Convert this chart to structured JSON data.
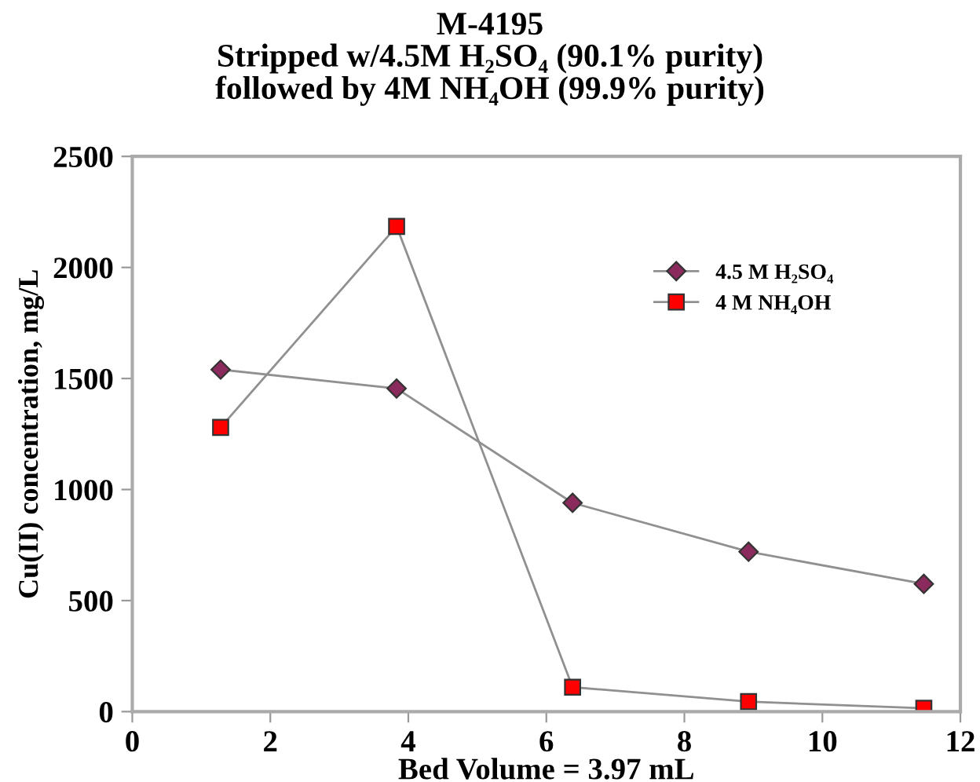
{
  "chart_data": {
    "type": "line",
    "title": "M-4195\nStripped w/4.5M H₂SO₄ (90.1% purity)\nfollowed by 4M NH₄OH (99.9% purity)",
    "xlabel": "Bed Volume = 3.97 mL",
    "ylabel": "Cu(II) concentration, mg/L",
    "x": [
      1.28,
      3.83,
      6.38,
      8.93,
      11.47
    ],
    "series": [
      {
        "name": "4.5 M H₂SO₄",
        "color": "#8b2a5c",
        "marker": "diamond",
        "values": [
          1540,
          1455,
          940,
          720,
          575
        ]
      },
      {
        "name": "4 M NH₄OH",
        "color": "#ff0000",
        "marker": "square",
        "values": [
          1280,
          2185,
          110,
          45,
          15
        ]
      }
    ],
    "xlim": [
      0,
      12
    ],
    "xticks": [
      0,
      2,
      4,
      6,
      8,
      10,
      12
    ],
    "ylim": [
      0,
      2500
    ],
    "yticks": [
      0,
      500,
      1000,
      1500,
      2000,
      2500
    ],
    "grid": false,
    "legend": "top right",
    "line_style": "solid"
  }
}
